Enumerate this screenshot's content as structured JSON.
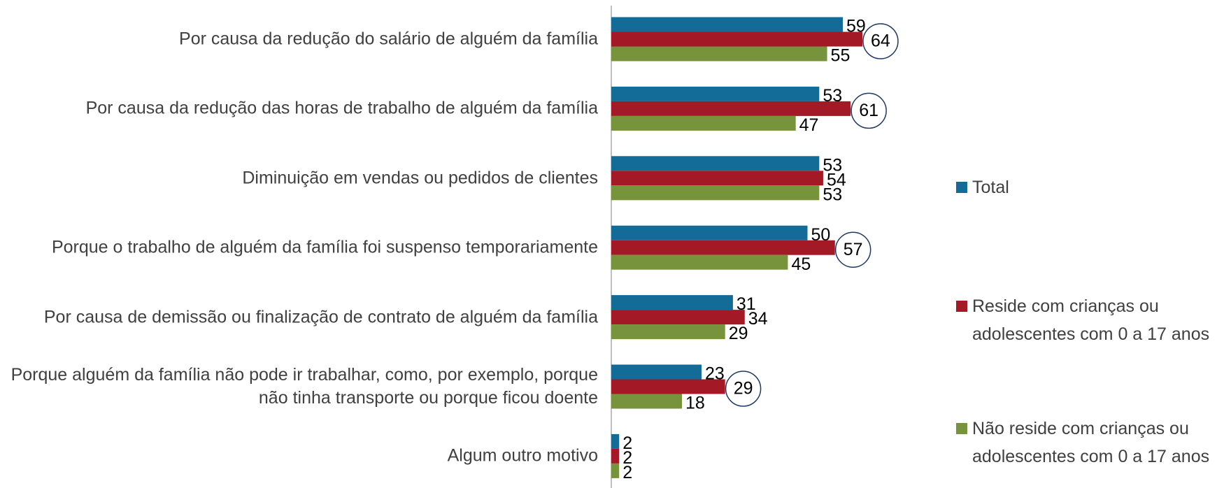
{
  "chart_data": {
    "type": "bar",
    "orientation": "horizontal",
    "categories": [
      "Por causa da redução do salário de alguém da família",
      "Por causa da redução das horas de trabalho de alguém da família",
      "Diminuição em vendas ou pedidos de clientes",
      "Porque o trabalho de alguém da família foi suspenso temporariamente",
      "Por causa de demissão ou finalização de contrato de alguém da família",
      "Porque alguém da família não pode ir trabalhar, como, por exemplo, porque não tinha transporte ou porque ficou doente",
      "Algum outro motivo"
    ],
    "series": [
      {
        "name": "Total",
        "color": "#136b97",
        "values": [
          59,
          53,
          53,
          50,
          31,
          23,
          2
        ]
      },
      {
        "name": "Reside com crianças ou adolescentes com 0 a 17 anos",
        "color": "#a31a26",
        "values": [
          64,
          61,
          54,
          57,
          34,
          29,
          2
        ],
        "circled": [
          0,
          1,
          3,
          5
        ]
      },
      {
        "name": "Não reside com crianças ou adolescentes com 0 a 17 anos",
        "color": "#77933c",
        "values": [
          55,
          47,
          53,
          45,
          29,
          18,
          2
        ]
      }
    ],
    "xlim": [
      0,
      100
    ],
    "legend": "right"
  }
}
